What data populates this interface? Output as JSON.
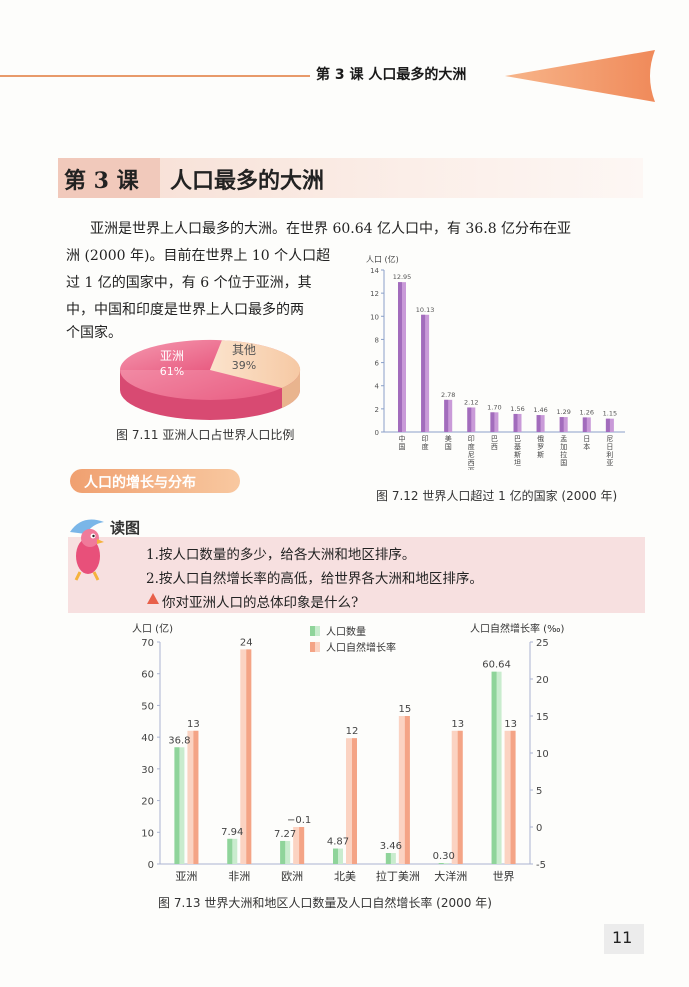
{
  "header": {
    "title": "第 3 课   人口最多的大洲"
  },
  "lesson": {
    "number": "第 3 课",
    "name": "人口最多的大洲"
  },
  "paragraph": {
    "lines": [
      "亚洲是世界上人口最多的大洲。在世界 60.64 亿人口中，有 36.8 亿分布在亚",
      "洲 (2000 年)。目前在世界上 10 个人口超",
      "过 1 亿的国家中，有 6 个位于亚洲，其",
      "中，中国和印度是世界上人口最多的两",
      "个国家。"
    ]
  },
  "figure_711": {
    "caption": "图 7.11  亚洲人口占世界人口比例",
    "chart_data": {
      "type": "pie",
      "slices": [
        {
          "label": "亚洲",
          "value_label": "61%",
          "value": 61
        },
        {
          "label": "其他",
          "value_label": "39%",
          "value": 39
        }
      ]
    }
  },
  "figure_712": {
    "caption": "图 7.12  世界人口超过 1 亿的国家 (2000 年)",
    "chart_data": {
      "type": "bar",
      "ylabel": "人口 (亿)",
      "ylim": [
        0,
        14
      ],
      "yticks": [
        "0",
        "2",
        "4",
        "6",
        "8",
        "10",
        "12",
        "14"
      ],
      "categories": [
        "中国",
        "印度",
        "美国",
        "印度尼西亚",
        "巴西",
        "巴基斯坦",
        "俄罗斯",
        "孟加拉国",
        "日本",
        "尼日利亚"
      ],
      "values": [
        12.95,
        10.13,
        2.78,
        2.12,
        1.7,
        1.56,
        1.46,
        1.29,
        1.26,
        1.15
      ],
      "value_labels": [
        "12.95",
        "10.13",
        "2.78",
        "2.12",
        "1.70",
        "1.56",
        "1.46",
        "1.29",
        "1.26",
        "1.15"
      ]
    }
  },
  "section": {
    "title": "人口的增长与分布"
  },
  "reading": {
    "title": "读图",
    "questions": [
      "1.按人口数量的多少，给各大洲和地区排序。",
      "2.按人口自然增长率的高低，给世界各大洲和地区排序。",
      "你对亚洲人口的总体印象是什么?"
    ]
  },
  "figure_713": {
    "caption": "图 7.13  世界大洲和地区人口数量及人口自然增长率 (2000 年)",
    "chart_data": {
      "type": "bar",
      "categories": [
        "亚洲",
        "非洲",
        "欧洲",
        "北美",
        "拉丁美洲",
        "大洋洲",
        "世界"
      ],
      "ylabel_left": "人口 (亿)",
      "ylabel_right": "人口自然增长率 (‰)",
      "ylim_left": [
        0,
        70
      ],
      "ylim_right": [
        -5,
        25
      ],
      "yticks_left": [
        "0",
        "10",
        "20",
        "30",
        "40",
        "50",
        "60",
        "70"
      ],
      "yticks_right": [
        "-5",
        "0",
        "5",
        "10",
        "15",
        "20",
        "25"
      ],
      "legend": [
        "人口数量",
        "人口自然增长率"
      ],
      "series": [
        {
          "name": "人口数量",
          "axis": "left",
          "values": [
            36.8,
            7.94,
            7.27,
            4.87,
            3.46,
            0.3,
            60.64
          ],
          "value_labels": [
            "36.8",
            "7.94",
            "7.27",
            "4.87",
            "3.46",
            "0.30",
            "60.64"
          ]
        },
        {
          "name": "人口自然增长率",
          "axis": "right",
          "values": [
            13,
            24,
            -0.1,
            12,
            15,
            13,
            13
          ],
          "value_labels": [
            "13",
            "24",
            "−0.1",
            "12",
            "15",
            "13",
            "13"
          ]
        }
      ]
    }
  },
  "page_number": "11",
  "colors": {
    "header_line": "#e89a6a",
    "purple_bar": "#b07cc6",
    "green_bar": "#8fd49a",
    "orange_bar": "#f4a486",
    "pie_asia": "#ee6e8e",
    "pie_other": "#f9d6b8"
  }
}
